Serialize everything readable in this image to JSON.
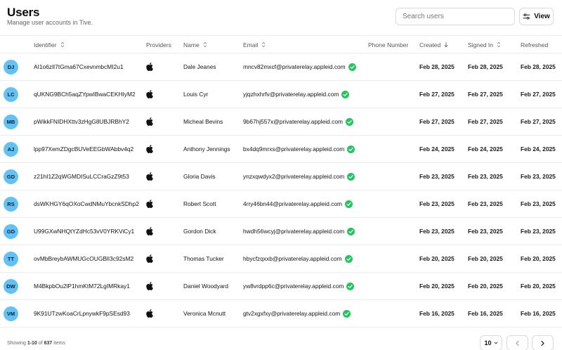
{
  "header": {
    "title": "Users",
    "subtitle": "Manage user accounts in Tive.",
    "search_placeholder": "Search users",
    "view_label": "View"
  },
  "columns": {
    "identifier": "Identifier",
    "providers": "Providers",
    "name": "Name",
    "email": "Email",
    "phone": "Phone Number",
    "created": "Created",
    "signed_in": "Signed In",
    "refreshed": "Refreshed"
  },
  "icons": {
    "provider": "apple-icon",
    "verified": "check-circle-icon",
    "sort": "sort-icon",
    "sort_desc": "arrow-down-icon"
  },
  "colors": {
    "avatar": "#63c1f3",
    "verified": "#22c55e"
  },
  "rows": [
    {
      "initials": "DJ",
      "identifier": "AI1o6zlI7tGma67CxevnmbcMI2u1",
      "name": "Dale Jeanes",
      "email": "mncv82mxcf@privaterelay.appleid.com",
      "created": "Feb 28, 2025",
      "signed_in": "Feb 28, 2025",
      "refreshed": "Feb 28, 2025"
    },
    {
      "initials": "LC",
      "identifier": "qUKNG9BCh5aqZYpwIBwaCEKHIyM2",
      "name": "Louis Cyr",
      "email": "yjqzhxhrfv@privaterelay.appleid.com",
      "created": "Feb 27, 2025",
      "signed_in": "Feb 27, 2025",
      "refreshed": "Feb 27, 2025"
    },
    {
      "initials": "MB",
      "identifier": "pWikkFNIDHXttv3zHgG8UBJRBhY2",
      "name": "Micheal Bevins",
      "email": "9b67hj557x@privaterelay.appleid.com",
      "created": "Feb 27, 2025",
      "signed_in": "Feb 27, 2025",
      "refreshed": "Feb 27, 2025"
    },
    {
      "initials": "AJ",
      "identifier": "lpp97XemZDgcBUVeEEGbWAbbv4q2",
      "name": "Anthony Jennings",
      "email": "bx4dq9mrxs@privaterelay.appleid.com",
      "created": "Feb 24, 2025",
      "signed_in": "Feb 24, 2025",
      "refreshed": "Feb 24, 2025"
    },
    {
      "initials": "GD",
      "identifier": "z21hI1Z2qWGMDISuLCCraGzZ9t53",
      "name": "Gloria Davis",
      "email": "ynzxqwdyx2@privaterelay.appleid.com",
      "created": "Feb 23, 2025",
      "signed_in": "Feb 23, 2025",
      "refreshed": "Feb 23, 2025"
    },
    {
      "initials": "RS",
      "identifier": "dsWKHGY6qOXoCwdNMuYbcnkSDhp2",
      "name": "Robert Scott",
      "email": "4rry46bn44@privaterelay.appleid.com",
      "created": "Feb 23, 2025",
      "signed_in": "Feb 23, 2025",
      "refreshed": "Feb 23, 2025"
    },
    {
      "initials": "GD",
      "identifier": "U99GXwNHQtYZdHc53vV0YRKViCy1",
      "name": "Gordon Dick",
      "email": "hwdh56wcyj@privaterelay.appleid.com",
      "created": "Feb 23, 2025",
      "signed_in": "Feb 23, 2025",
      "refreshed": "Feb 23, 2025"
    },
    {
      "initials": "TT",
      "identifier": "ovMbBreybAWMUGcOUGBlI3c92sM2",
      "name": "Thomas Tucker",
      "email": "hbycfzqxxb@privaterelay.appleid.com",
      "created": "Feb 20, 2025",
      "signed_in": "Feb 20, 2025",
      "refreshed": "Feb 20, 2025"
    },
    {
      "initials": "DW",
      "identifier": "M4BkpbOu2lP1hmKtM72LgIMRkay1",
      "name": "Daniel Woodyard",
      "email": "yw8vrdpp6c@privaterelay.appleid.com",
      "created": "Feb 20, 2025",
      "signed_in": "Feb 20, 2025",
      "refreshed": "Feb 20, 2025"
    },
    {
      "initials": "VM",
      "identifier": "9K91UTzwKoaCrLpnywkF9pSEsd93",
      "name": "Veronica Mcnutt",
      "email": "gtv2xgxfxy@privaterelay.appleid.com",
      "created": "Feb 16, 2025",
      "signed_in": "Feb 16, 2025",
      "refreshed": "Feb 16, 2025"
    }
  ],
  "footer": {
    "showing_prefix": "Showing",
    "range": "1-10",
    "of_label": "of",
    "total": "637",
    "items_label": "items",
    "page_size": "10"
  }
}
